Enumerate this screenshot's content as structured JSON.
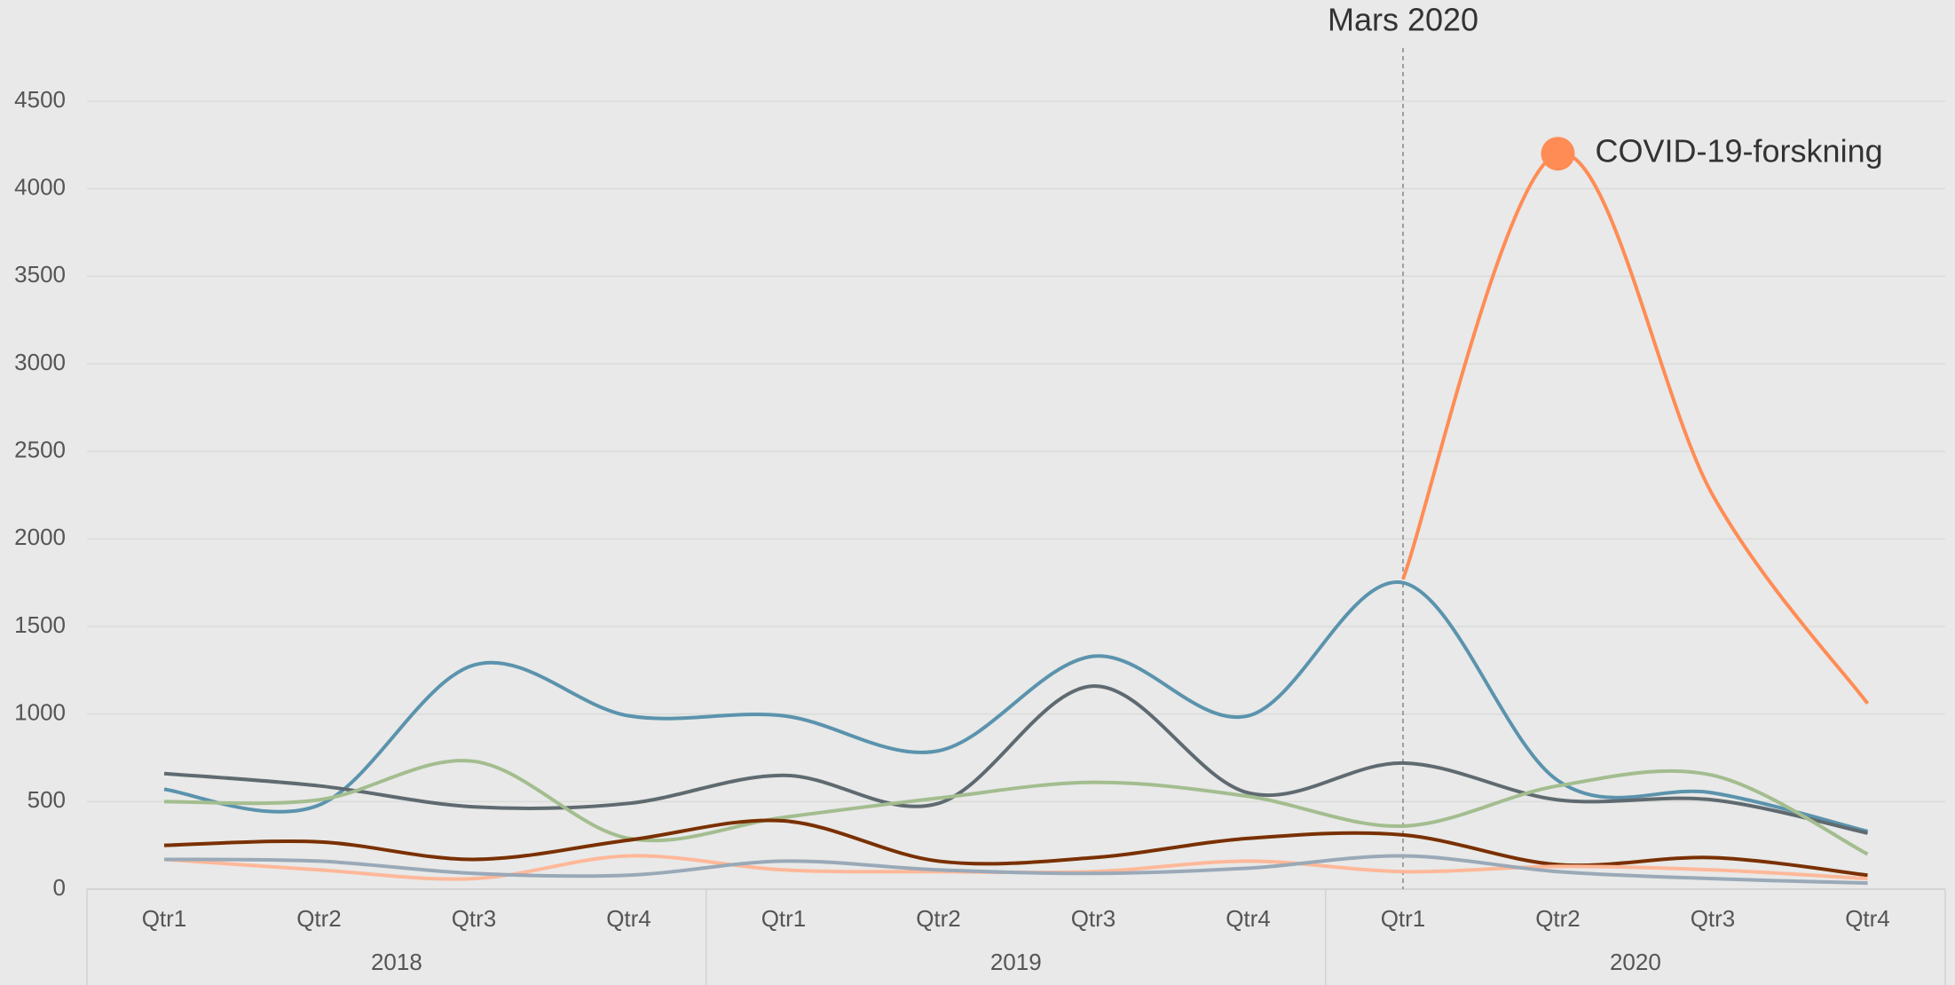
{
  "chart_data": {
    "type": "line",
    "categories": [
      "Qtr1",
      "Qtr2",
      "Qtr3",
      "Qtr4",
      "Qtr1",
      "Qtr2",
      "Qtr3",
      "Qtr4",
      "Qtr1",
      "Qtr2",
      "Qtr3",
      "Qtr4"
    ],
    "groups": [
      "2018",
      "2019",
      "2020"
    ],
    "ylim": [
      0,
      4500
    ],
    "yticks": [
      0,
      500,
      1000,
      1500,
      2000,
      2500,
      3000,
      3500,
      4000,
      4500
    ],
    "grid": true,
    "series": [
      {
        "color": "#5b93ad",
        "values": [
          570,
          480,
          1280,
          990,
          990,
          790,
          1330,
          990,
          1750,
          620,
          550,
          330
        ]
      },
      {
        "color": "#5f6a70",
        "values": [
          660,
          590,
          470,
          490,
          650,
          490,
          1160,
          550,
          720,
          510,
          510,
          320
        ]
      },
      {
        "color": "#a3bd8f",
        "values": [
          500,
          510,
          730,
          290,
          410,
          520,
          610,
          530,
          360,
          590,
          650,
          200
        ]
      },
      {
        "color": "#7a3000",
        "values": [
          250,
          270,
          170,
          280,
          390,
          160,
          180,
          290,
          310,
          140,
          180,
          80
        ]
      },
      {
        "color": "#ffb899",
        "values": [
          170,
          110,
          60,
          190,
          110,
          100,
          100,
          160,
          100,
          130,
          110,
          60
        ]
      },
      {
        "color": "#9aa9b8",
        "values": [
          170,
          160,
          90,
          80,
          160,
          110,
          90,
          120,
          190,
          100,
          60,
          35
        ]
      },
      {
        "name": "COVID-19-forskning",
        "color": "#ff8c55",
        "values": [
          null,
          null,
          null,
          null,
          null,
          null,
          null,
          null,
          1770,
          4200,
          2250,
          1060
        ]
      }
    ],
    "annotation": {
      "text": "Mars 2020",
      "index": 8
    }
  }
}
